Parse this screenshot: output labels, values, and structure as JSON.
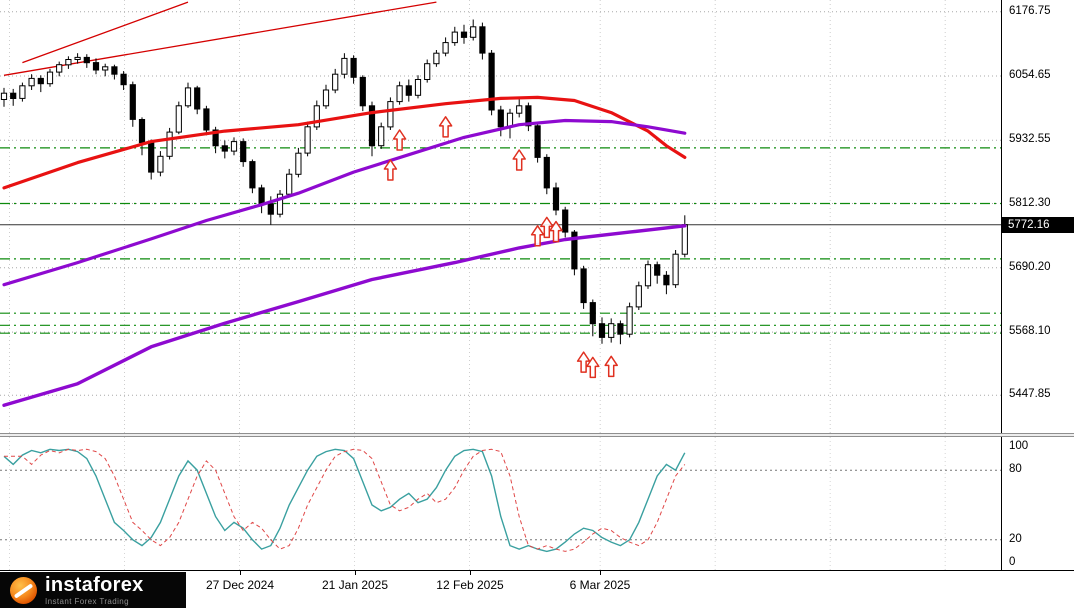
{
  "price_axis": {
    "labels": [
      "6176.75",
      "6054.65",
      "5932.55",
      "5812.30",
      "5690.20",
      "5568.10",
      "5447.85"
    ],
    "values": [
      6176.75,
      6054.65,
      5932.55,
      5812.3,
      5690.2,
      5568.1,
      5447.85
    ],
    "current_price_label": "5772.16",
    "current_price": 5772.16
  },
  "indicator_axis": {
    "labels": [
      "100",
      "80",
      "20",
      "0"
    ],
    "values": [
      100,
      80,
      20,
      0
    ]
  },
  "time_axis": {
    "ticks": [
      {
        "label": "27 Dec 2024",
        "i": 25.6
      },
      {
        "label": "21 Jan 2025",
        "i": 38.1
      },
      {
        "label": "12 Feb 2025",
        "i": 50.6
      },
      {
        "label": "6 Mar 2025",
        "i": 64.8
      }
    ]
  },
  "logo": {
    "brand": "instaforex",
    "tagline": "Instant Forex Trading"
  },
  "chart_data": [
    {
      "type": "candlestick",
      "title": "",
      "ylim": [
        5400,
        6199
      ],
      "grid": true,
      "price_labels": [
        6176.75,
        6054.65,
        5932.55,
        5812.3,
        5690.2,
        5568.1,
        5447.85
      ],
      "current_price": 5772.16,
      "x_guides_i": [
        0.6,
        13.1,
        25.6,
        38.1,
        50.6,
        64.8,
        77.3,
        89.8,
        102.3
      ],
      "colors": {
        "bull": "#ffffff",
        "bear": "#000000",
        "green_level": "#0c8a0c",
        "trendline": "#d40000",
        "current_line": "#333333",
        "grid": "#a8a8a8"
      },
      "candles": [
        [
          6010,
          6032,
          5996,
          6022
        ],
        [
          6022,
          6030,
          5998,
          6012
        ],
        [
          6012,
          6042,
          6006,
          6036
        ],
        [
          6036,
          6058,
          6028,
          6050
        ],
        [
          6050,
          6056,
          6024,
          6040
        ],
        [
          6040,
          6068,
          6034,
          6062
        ],
        [
          6062,
          6082,
          6054,
          6076
        ],
        [
          6076,
          6092,
          6068,
          6086
        ],
        [
          6086,
          6098,
          6078,
          6090
        ],
        [
          6090,
          6096,
          6070,
          6080
        ],
        [
          6080,
          6088,
          6058,
          6066
        ],
        [
          6066,
          6078,
          6054,
          6072
        ],
        [
          6072,
          6076,
          6048,
          6058
        ],
        [
          6058,
          6064,
          6028,
          6038
        ],
        [
          6038,
          6044,
          5958,
          5972
        ],
        [
          5972,
          5976,
          5904,
          5928
        ],
        [
          5928,
          5934,
          5858,
          5872
        ],
        [
          5872,
          5912,
          5864,
          5902
        ],
        [
          5902,
          5956,
          5896,
          5948
        ],
        [
          5948,
          6006,
          5944,
          5998
        ],
        [
          5998,
          6042,
          5994,
          6032
        ],
        [
          6032,
          6036,
          5982,
          5992
        ],
        [
          5992,
          5998,
          5942,
          5952
        ],
        [
          5952,
          5958,
          5908,
          5922
        ],
        [
          5922,
          5932,
          5898,
          5912
        ],
        [
          5912,
          5938,
          5904,
          5930
        ],
        [
          5930,
          5936,
          5882,
          5892
        ],
        [
          5892,
          5896,
          5832,
          5842
        ],
        [
          5842,
          5848,
          5794,
          5812
        ],
        [
          5812,
          5826,
          5772,
          5792
        ],
        [
          5792,
          5838,
          5786,
          5830
        ],
        [
          5830,
          5878,
          5824,
          5868
        ],
        [
          5868,
          5918,
          5862,
          5908
        ],
        [
          5908,
          5968,
          5902,
          5958
        ],
        [
          5958,
          6008,
          5952,
          5998
        ],
        [
          5998,
          6038,
          5992,
          6028
        ],
        [
          6028,
          6068,
          6022,
          6058
        ],
        [
          6058,
          6098,
          6050,
          6088
        ],
        [
          6088,
          6094,
          6040,
          6052
        ],
        [
          6052,
          6056,
          5988,
          5998
        ],
        [
          5998,
          6006,
          5902,
          5922
        ],
        [
          5922,
          5966,
          5916,
          5958
        ],
        [
          5958,
          6014,
          5952,
          6006
        ],
        [
          6006,
          6044,
          6000,
          6036
        ],
        [
          6036,
          6048,
          6006,
          6018
        ],
        [
          6018,
          6056,
          6012,
          6048
        ],
        [
          6048,
          6086,
          6042,
          6078
        ],
        [
          6078,
          6104,
          6072,
          6098
        ],
        [
          6098,
          6128,
          6092,
          6118
        ],
        [
          6118,
          6148,
          6112,
          6138
        ],
        [
          6138,
          6152,
          6116,
          6128
        ],
        [
          6128,
          6162,
          6122,
          6148
        ],
        [
          6148,
          6156,
          6086,
          6098
        ],
        [
          6098,
          6104,
          5980,
          5990
        ],
        [
          5990,
          5998,
          5940,
          5958
        ],
        [
          5958,
          5992,
          5936,
          5984
        ],
        [
          5984,
          6010,
          5976,
          5998
        ],
        [
          5998,
          6004,
          5950,
          5960
        ],
        [
          5960,
          5966,
          5890,
          5900
        ],
        [
          5900,
          5906,
          5830,
          5842
        ],
        [
          5842,
          5852,
          5790,
          5800
        ],
        [
          5800,
          5806,
          5748,
          5758
        ],
        [
          5758,
          5762,
          5676,
          5688
        ],
        [
          5688,
          5694,
          5612,
          5624
        ],
        [
          5624,
          5630,
          5560,
          5584
        ],
        [
          5584,
          5596,
          5546,
          5558
        ],
        [
          5558,
          5594,
          5548,
          5584
        ],
        [
          5584,
          5590,
          5545,
          5564
        ],
        [
          5564,
          5624,
          5558,
          5616
        ],
        [
          5616,
          5664,
          5610,
          5656
        ],
        [
          5656,
          5704,
          5650,
          5696
        ],
        [
          5696,
          5702,
          5660,
          5676
        ],
        [
          5676,
          5684,
          5640,
          5658
        ],
        [
          5658,
          5724,
          5652,
          5716
        ],
        [
          5716,
          5790,
          5710,
          5772
        ]
      ],
      "ma_series": [
        {
          "name": "ma-red",
          "color": "#e81212",
          "width": 3.2,
          "points": [
            [
              0,
              5842
            ],
            [
              8,
              5890
            ],
            [
              16,
              5930
            ],
            [
              24,
              5950
            ],
            [
              32,
              5962
            ],
            [
              40,
              5985
            ],
            [
              48,
              6002
            ],
            [
              54,
              6012
            ],
            [
              58,
              6014
            ],
            [
              62,
              6008
            ],
            [
              66,
              5985
            ],
            [
              70,
              5950
            ],
            [
              72,
              5922
            ],
            [
              74,
              5900
            ]
          ]
        },
        {
          "name": "ma-purple-fast",
          "color": "#8e0ad0",
          "width": 3.2,
          "points": [
            [
              0,
              5658
            ],
            [
              8,
              5700
            ],
            [
              16,
              5745
            ],
            [
              22,
              5780
            ],
            [
              28,
              5810
            ],
            [
              32,
              5832
            ],
            [
              38,
              5872
            ],
            [
              44,
              5905
            ],
            [
              50,
              5938
            ],
            [
              56,
              5962
            ],
            [
              61,
              5970
            ],
            [
              66,
              5968
            ],
            [
              70,
              5958
            ],
            [
              74,
              5946
            ]
          ]
        },
        {
          "name": "ma-purple-slow",
          "color": "#8e0ad0",
          "width": 3.4,
          "points": [
            [
              0,
              5429
            ],
            [
              8,
              5470
            ],
            [
              16,
              5540
            ],
            [
              24,
              5585
            ],
            [
              32,
              5626
            ],
            [
              40,
              5668
            ],
            [
              49,
              5700
            ],
            [
              56,
              5728
            ],
            [
              61,
              5744
            ],
            [
              68,
              5758
            ],
            [
              74,
              5770
            ]
          ]
        }
      ],
      "support_resistance_green": [
        5918,
        5812.3,
        5707,
        5604,
        5581,
        5566
      ],
      "trendlines": [
        {
          "color": "#d40000",
          "points": [
            [
              0,
              6056
            ],
            [
              47,
              6195
            ]
          ]
        },
        {
          "color": "#d40000",
          "points": [
            [
              2,
              6080
            ],
            [
              20,
              6195
            ]
          ]
        }
      ],
      "arrows_up": [
        [
          42,
          5895
        ],
        [
          43,
          5952
        ],
        [
          48,
          5977
        ],
        [
          56,
          5914
        ],
        [
          58,
          5770
        ],
        [
          59,
          5786
        ],
        [
          60,
          5778
        ],
        [
          63,
          5530
        ],
        [
          64,
          5520
        ],
        [
          66,
          5522
        ]
      ]
    },
    {
      "type": "line",
      "name": "oscillator",
      "ylim": [
        0,
        100
      ],
      "guide_levels": [
        80,
        20
      ],
      "axis_labels": [
        100,
        80,
        20,
        0
      ],
      "series": [
        {
          "name": "main",
          "color": "#3aa0a0",
          "style": "solid",
          "values": [
            92,
            85,
            93,
            97,
            95,
            98,
            97,
            98,
            96,
            90,
            75,
            55,
            35,
            28,
            20,
            15,
            22,
            35,
            55,
            75,
            88,
            80,
            60,
            40,
            28,
            35,
            30,
            20,
            12,
            15,
            30,
            50,
            65,
            80,
            92,
            96,
            98,
            97,
            90,
            70,
            50,
            45,
            48,
            55,
            60,
            52,
            55,
            65,
            80,
            92,
            97,
            98,
            96,
            75,
            40,
            15,
            12,
            15,
            12,
            10,
            12,
            18,
            25,
            30,
            28,
            22,
            18,
            15,
            20,
            35,
            55,
            75,
            85,
            80,
            95
          ]
        },
        {
          "name": "signal",
          "color": "#e04848",
          "style": "dashed",
          "values": [
            92,
            92,
            92,
            85,
            93,
            97,
            95,
            98,
            97,
            98,
            96,
            90,
            75,
            55,
            35,
            28,
            20,
            15,
            22,
            35,
            55,
            75,
            88,
            80,
            60,
            40,
            28,
            35,
            30,
            20,
            12,
            15,
            30,
            50,
            65,
            80,
            92,
            96,
            98,
            97,
            90,
            70,
            50,
            45,
            48,
            55,
            60,
            52,
            55,
            65,
            80,
            92,
            97,
            98,
            96,
            75,
            40,
            15,
            12,
            15,
            12,
            10,
            12,
            18,
            25,
            30,
            28,
            22,
            18,
            15,
            20,
            35,
            55,
            75,
            85
          ]
        }
      ]
    }
  ]
}
